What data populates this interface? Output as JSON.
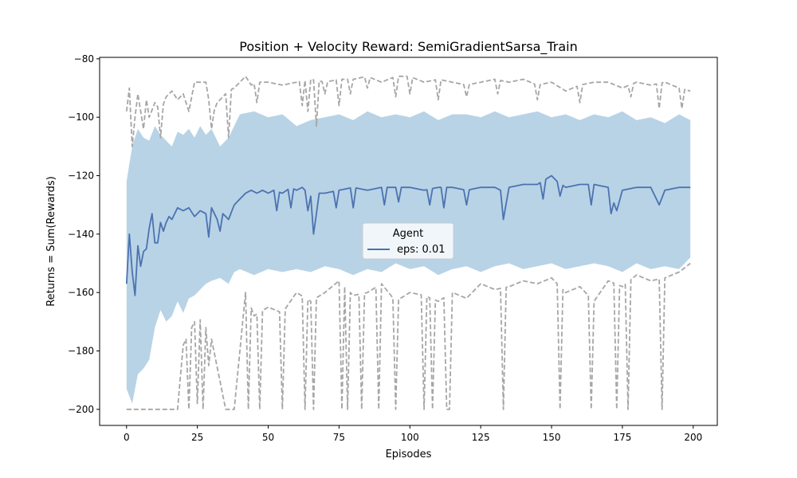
{
  "chart_data": {
    "type": "line",
    "title": "Position + Velocity Reward: SemiGradientSarsa_Train",
    "xlabel": "Episodes",
    "ylabel": "Returns = Sum(Rewards)",
    "xlim": [
      -9.5,
      208.5
    ],
    "ylim": [
      -205.5,
      -79.5
    ],
    "xticks": [
      0,
      25,
      50,
      75,
      100,
      125,
      150,
      175,
      200
    ],
    "yticks": [
      -80,
      -100,
      -120,
      -140,
      -160,
      -180,
      -200
    ],
    "xtick_labels": [
      "0",
      "25",
      "50",
      "75",
      "100",
      "125",
      "150",
      "175",
      "200"
    ],
    "ytick_labels": [
      "−80",
      "−100",
      "−120",
      "−140",
      "−160",
      "−180",
      "−200"
    ],
    "legend": {
      "title": "Agent",
      "position": "center",
      "entries": [
        "eps: 0.01"
      ]
    },
    "grid": false,
    "colors": {
      "mean": "#4c72b0",
      "band": "#b8d3e6",
      "minmax": "#a6a6a6"
    },
    "series": [
      {
        "name": "eps: 0.01",
        "role": "mean",
        "anchors": {
          "x": [
            0,
            1,
            2,
            3,
            4,
            5,
            6,
            7,
            8,
            9,
            10,
            11,
            12,
            13,
            14,
            15,
            16,
            18,
            20,
            22,
            24,
            26,
            28,
            30,
            32,
            34,
            36,
            38,
            40,
            42,
            44,
            46,
            48,
            50,
            52,
            55,
            58,
            60,
            62,
            65,
            66,
            68,
            70,
            75,
            80,
            85,
            90,
            95,
            100,
            105,
            110,
            115,
            120,
            125,
            130,
            132,
            133,
            135,
            140,
            145,
            150,
            152,
            155,
            160,
            165,
            170,
            173,
            175,
            180,
            185,
            188,
            190,
            195,
            199
          ],
          "y": [
            -157,
            -140,
            -153,
            -161,
            -144,
            -151,
            -146,
            -139,
            -138,
            -133,
            -143,
            -134,
            -136,
            -139,
            -136,
            -134,
            -135,
            -131,
            -132,
            -131,
            -134,
            -132,
            -133,
            -131,
            -135,
            -133,
            -135,
            -130,
            -128,
            -126,
            -125,
            -126,
            -125,
            -126,
            -125,
            -126,
            -124,
            -125,
            -124,
            -127,
            -140,
            -126,
            -126,
            -125,
            -124,
            -125,
            -124,
            -124,
            -124,
            -125,
            -124,
            -124,
            -125,
            -124,
            -124,
            -125,
            -135,
            -124,
            -123,
            -123,
            -120,
            -122,
            -124,
            -123,
            -123,
            -124,
            -132,
            -125,
            -124,
            -124,
            -130,
            -125,
            -124,
            -124
          ]
        },
        "dips": {
          "x": [
            7,
            11,
            29,
            33,
            53,
            58,
            64,
            74,
            80,
            91,
            96,
            107,
            112,
            120,
            133,
            147,
            153,
            164,
            171,
            188
          ],
          "y": [
            -145,
            -143,
            -141,
            -139,
            -132,
            -131,
            -132,
            -131,
            -131,
            -130,
            -129,
            -130,
            -131,
            -130,
            -135,
            -128,
            -127,
            -130,
            -133,
            -130
          ]
        }
      },
      {
        "name": "",
        "role": "band_upper",
        "anchors": {
          "x": [
            0,
            2,
            4,
            6,
            8,
            10,
            12,
            14,
            16,
            18,
            20,
            22,
            24,
            26,
            28,
            30,
            33,
            36,
            38,
            40,
            45,
            50,
            55,
            60,
            65,
            70,
            75,
            80,
            85,
            90,
            95,
            100,
            105,
            110,
            115,
            120,
            125,
            130,
            135,
            140,
            145,
            150,
            155,
            160,
            165,
            170,
            175,
            180,
            185,
            190,
            195,
            199
          ],
          "y": [
            -122,
            -110,
            -104,
            -107,
            -108,
            -103,
            -106,
            -108,
            -110,
            -105,
            -106,
            -104,
            -107,
            -103,
            -106,
            -104,
            -110,
            -107,
            -103,
            -99,
            -98,
            -100,
            -99,
            -103,
            -101,
            -100,
            -99,
            -101,
            -98,
            -100,
            -99,
            -100,
            -98,
            -101,
            -99,
            -99,
            -100,
            -98,
            -100,
            -99,
            -98,
            -100,
            -99,
            -101,
            -99,
            -100,
            -98,
            -101,
            -100,
            -102,
            -99,
            -101
          ]
        }
      },
      {
        "name": "",
        "role": "band_lower",
        "anchors": {
          "x": [
            0,
            2,
            4,
            6,
            8,
            10,
            12,
            14,
            16,
            18,
            20,
            22,
            24,
            26,
            28,
            30,
            33,
            36,
            38,
            40,
            45,
            50,
            55,
            60,
            65,
            70,
            75,
            80,
            85,
            90,
            95,
            100,
            105,
            110,
            115,
            120,
            125,
            130,
            135,
            140,
            145,
            150,
            155,
            160,
            165,
            170,
            175,
            180,
            185,
            190,
            195,
            199
          ],
          "y": [
            -193,
            -198,
            -188,
            -186,
            -183,
            -172,
            -166,
            -170,
            -168,
            -163,
            -167,
            -162,
            -161,
            -159,
            -157,
            -156,
            -155,
            -157,
            -153,
            -152,
            -154,
            -152,
            -153,
            -152,
            -153,
            -151,
            -152,
            -154,
            -152,
            -153,
            -150,
            -152,
            -151,
            -154,
            -152,
            -151,
            -153,
            -151,
            -150,
            -152,
            -151,
            -150,
            -152,
            -151,
            -150,
            -151,
            -153,
            -150,
            -152,
            -151,
            -152,
            -148
          ]
        }
      },
      {
        "name": "",
        "role": "max",
        "anchors": {
          "x": [
            0,
            1,
            2,
            3,
            4,
            5,
            6,
            7,
            8,
            10,
            12,
            14,
            16,
            18,
            20,
            22,
            24,
            26,
            28,
            30,
            32,
            34,
            36,
            38,
            40,
            42,
            44,
            46,
            50,
            55,
            60,
            65,
            70,
            75,
            80,
            85,
            90,
            95,
            100,
            105,
            110,
            115,
            120,
            125,
            130,
            135,
            140,
            145,
            150,
            155,
            160,
            165,
            170,
            175,
            180,
            185,
            190,
            195,
            199
          ],
          "y": [
            -95,
            -90,
            -110,
            -100,
            -92,
            -98,
            -96,
            -94,
            -100,
            -95,
            -98,
            -93,
            -91,
            -94,
            -92,
            -98,
            -88,
            -88,
            -88,
            -100,
            -95,
            -93,
            -91,
            -90,
            -88,
            -86,
            -89,
            -88,
            -88,
            -89,
            -88,
            -87,
            -88,
            -87,
            -87,
            -86,
            -88,
            -86,
            -86,
            -88,
            -87,
            -88,
            -89,
            -88,
            -87,
            -88,
            -87,
            -89,
            -88,
            -91,
            -89,
            -88,
            -88,
            -90,
            -88,
            -89,
            -88,
            -90,
            -91
          ]
        },
        "dips": {
          "x": [
            0,
            2,
            6,
            12,
            30,
            36,
            46,
            62,
            64,
            67,
            70,
            75,
            79,
            85,
            95,
            100,
            110,
            120,
            131,
            145,
            160,
            178,
            188,
            196
          ],
          "y": [
            -98,
            -110,
            -104,
            -107,
            -104,
            -107,
            -95,
            -96,
            -98,
            -103,
            -92,
            -96,
            -92,
            -90,
            -93,
            -92,
            -94,
            -93,
            -92,
            -94,
            -95,
            -93,
            -97,
            -97
          ]
        }
      },
      {
        "name": "",
        "role": "min",
        "anchors": {
          "x": [
            0,
            3,
            6,
            10,
            15,
            18,
            20,
            25,
            28,
            30,
            35,
            38,
            40,
            42,
            45,
            50,
            55,
            60,
            65,
            70,
            75,
            80,
            85,
            90,
            95,
            100,
            105,
            110,
            115,
            120,
            125,
            130,
            135,
            140,
            145,
            150,
            155,
            160,
            165,
            170,
            175,
            180,
            185,
            190,
            195,
            199
          ],
          "y": [
            -200,
            -200,
            -200,
            -200,
            -200,
            -200,
            -178,
            -168,
            -172,
            -176,
            -200,
            -200,
            -180,
            -160,
            -168,
            -165,
            -167,
            -160,
            -163,
            -160,
            -156,
            -161,
            -160,
            -157,
            -163,
            -160,
            -161,
            -163,
            -160,
            -162,
            -157,
            -159,
            -158,
            -156,
            -157,
            -155,
            -160,
            -158,
            -163,
            -156,
            -158,
            -154,
            -156,
            -155,
            -153,
            -150
          ]
        },
        "dips": {
          "x": [
            22,
            25,
            27,
            29,
            43,
            47,
            55,
            63,
            66,
            76,
            78,
            83,
            89,
            95,
            105,
            108,
            113,
            114,
            133,
            153,
            164,
            173,
            177,
            189
          ],
          "y": [
            -200,
            -198,
            -200,
            -185,
            -200,
            -200,
            -200,
            -200,
            -200,
            -200,
            -200,
            -200,
            -200,
            -200,
            -200,
            -200,
            -200,
            -200,
            -200,
            -200,
            -200,
            -200,
            -200,
            -200
          ]
        }
      }
    ]
  }
}
